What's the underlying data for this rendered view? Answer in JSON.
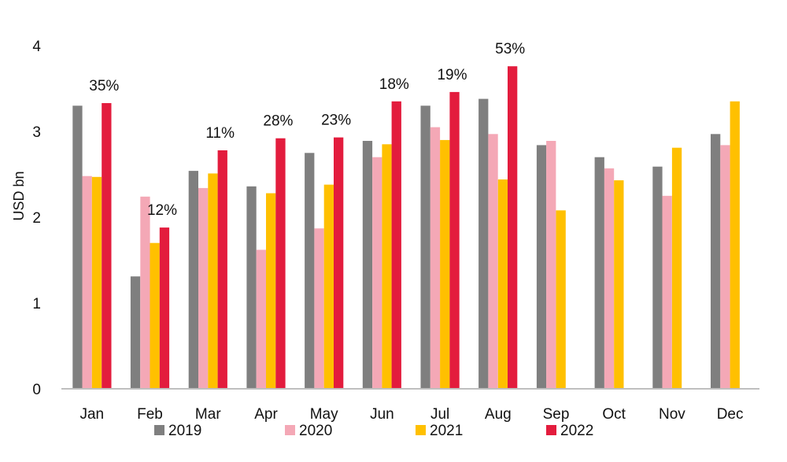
{
  "chart_data": {
    "type": "bar",
    "ylabel": "USD bn",
    "ylim": [
      0,
      4
    ],
    "yticks": [
      0,
      1,
      2,
      3,
      4
    ],
    "grid": false,
    "legend_position": "bottom",
    "categories": [
      "Jan",
      "Feb",
      "Mar",
      "Apr",
      "May",
      "Jun",
      "Jul",
      "Aug",
      "Sep",
      "Oct",
      "Nov",
      "Dec"
    ],
    "series": [
      {
        "name": "2019",
        "color": "#7f7f7f",
        "values": [
          3.3,
          1.31,
          2.54,
          2.36,
          2.75,
          2.89,
          3.3,
          3.38,
          2.84,
          2.7,
          2.59,
          2.97
        ]
      },
      {
        "name": "2020",
        "color": "#f4a8b6",
        "values": [
          2.48,
          2.24,
          2.34,
          1.62,
          1.87,
          2.7,
          3.05,
          2.97,
          2.89,
          2.57,
          2.25,
          2.84
        ]
      },
      {
        "name": "2021",
        "color": "#ffc000",
        "values": [
          2.47,
          1.7,
          2.51,
          2.28,
          2.38,
          2.85,
          2.9,
          2.44,
          2.08,
          2.43,
          2.81,
          3.35
        ]
      },
      {
        "name": "2022",
        "color": "#e31c3d",
        "values": [
          3.33,
          1.88,
          2.78,
          2.92,
          2.93,
          3.35,
          3.46,
          3.76,
          null,
          null,
          null,
          null
        ]
      }
    ],
    "annotations": [
      {
        "category": "Jan",
        "text": "35%"
      },
      {
        "category": "Feb",
        "text": "12%"
      },
      {
        "category": "Mar",
        "text": "11%"
      },
      {
        "category": "Apr",
        "text": "28%"
      },
      {
        "category": "May",
        "text": "23%"
      },
      {
        "category": "Jun",
        "text": "18%"
      },
      {
        "category": "Jul",
        "text": "19%"
      },
      {
        "category": "Aug",
        "text": "53%"
      }
    ]
  }
}
